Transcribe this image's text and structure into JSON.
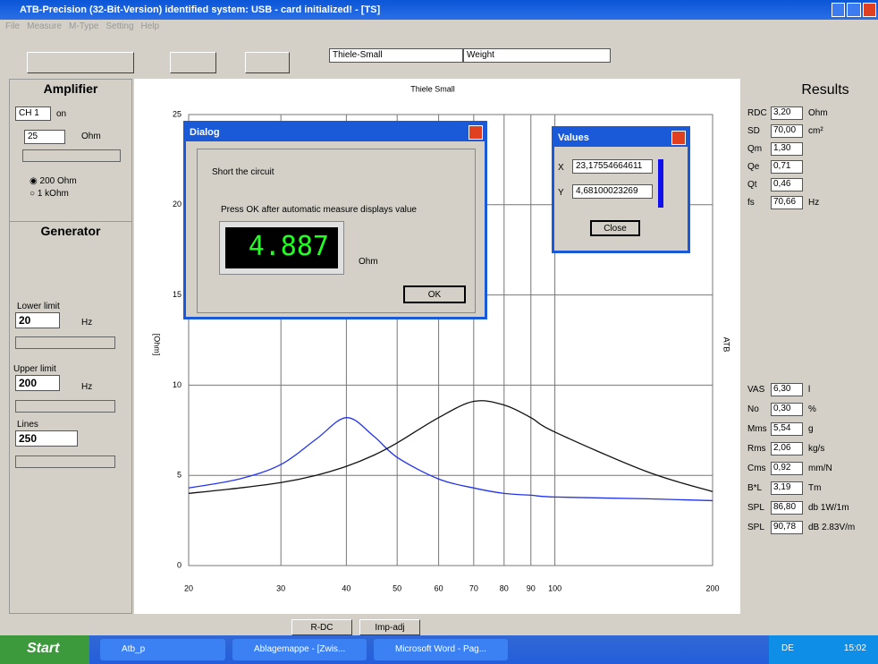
{
  "window": {
    "title": "ATB-Precision  (32-Bit-Version)  identified system: USB - card  initialized! - [TS]"
  },
  "menu": [
    "File",
    "Measure",
    "M-Type",
    "Setting",
    "Help"
  ],
  "toolbar": {
    "dropdown1": "Thiele-Small",
    "dropdown2": "Weight"
  },
  "amplifier": {
    "title": "Amplifier",
    "channel": "CH 1",
    "state": "on",
    "value": "25",
    "unit": "Ohm",
    "options": [
      "200 Ohm",
      "1 kOhm"
    ]
  },
  "generator": {
    "title": "Generator",
    "lower_label": "Lower limit",
    "lower": "20",
    "lower_unit": "Hz",
    "upper_label": "Upper limit",
    "upper": "200",
    "upper_unit": "Hz",
    "lines_label": "Lines",
    "lines": "250"
  },
  "chart_data": {
    "type": "line",
    "title": "Thiele Small",
    "ylabel": "[Ohm]",
    "right_label": "ATB",
    "x": [
      20,
      25,
      30,
      35,
      40,
      45,
      50,
      60,
      70,
      80,
      90,
      100,
      150,
      200
    ],
    "series": [
      {
        "color": "#2233ee",
        "values": [
          4.3,
          4.8,
          5.6,
          7.0,
          8.2,
          7.2,
          6.0,
          4.8,
          4.3,
          4.0,
          3.9,
          3.8,
          3.7,
          3.6
        ]
      },
      {
        "color": "#111111",
        "values": [
          4.0,
          4.3,
          4.6,
          5.0,
          5.5,
          6.1,
          6.8,
          8.2,
          9.1,
          8.9,
          8.2,
          7.4,
          5.2,
          4.1
        ]
      }
    ],
    "xlim": [
      20,
      200
    ],
    "xscale": "log",
    "xticks": [
      20,
      30,
      40,
      50,
      60,
      70,
      80,
      90,
      100,
      200
    ],
    "ylim": [
      0,
      25
    ],
    "yticks": [
      0,
      5,
      10,
      15,
      20,
      25
    ],
    "grid": true
  },
  "dialog": {
    "title": "Dialog",
    "text1": "Short the circuit",
    "text2": "Press OK after automatic measure displays value",
    "reading": "4.887",
    "unit": "Ohm",
    "button": "OK"
  },
  "values_window": {
    "title": "Values",
    "x_label": "X",
    "x": "23,17554664611",
    "y_label": "Y",
    "y": "4,68100023269",
    "button": "Close"
  },
  "results": {
    "title": "Results",
    "top": [
      {
        "name": "RDC",
        "value": "3,20",
        "unit": "Ohm"
      },
      {
        "name": "SD",
        "value": "70,00",
        "unit": "cm²"
      },
      {
        "name": "Qm",
        "value": "1,30"
      },
      {
        "name": "Qe",
        "value": "0,71"
      },
      {
        "name": "Qt",
        "value": "0,46"
      },
      {
        "name": "fs",
        "value": "70,66",
        "unit": "Hz"
      }
    ],
    "bottom": [
      {
        "name": "VAS",
        "value": "6,30",
        "unit": "l"
      },
      {
        "name": "No",
        "value": "0,30",
        "unit": "%"
      },
      {
        "name": "Mms",
        "value": "5,54",
        "unit": "g"
      },
      {
        "name": "Rms",
        "value": "2,06",
        "unit": "kg/s"
      },
      {
        "name": "Cms",
        "value": "0,92",
        "unit": "mm/N"
      },
      {
        "name": "B*L",
        "value": "3,19",
        "unit": "Tm"
      },
      {
        "name": "SPL",
        "value": "86,80",
        "unit": "db 1W/1m"
      },
      {
        "name": "SPL",
        "value": "90,78",
        "unit": "dB 2.83V/m"
      }
    ]
  },
  "tabs": [
    "R-DC",
    "Imp-adj"
  ],
  "taskbar": {
    "start": "Start",
    "items": [
      "Atb_p",
      "Ablagemappe - [Zwis...",
      "Microsoft Word - Pag..."
    ],
    "lang": "DE",
    "clock": "15:02"
  }
}
